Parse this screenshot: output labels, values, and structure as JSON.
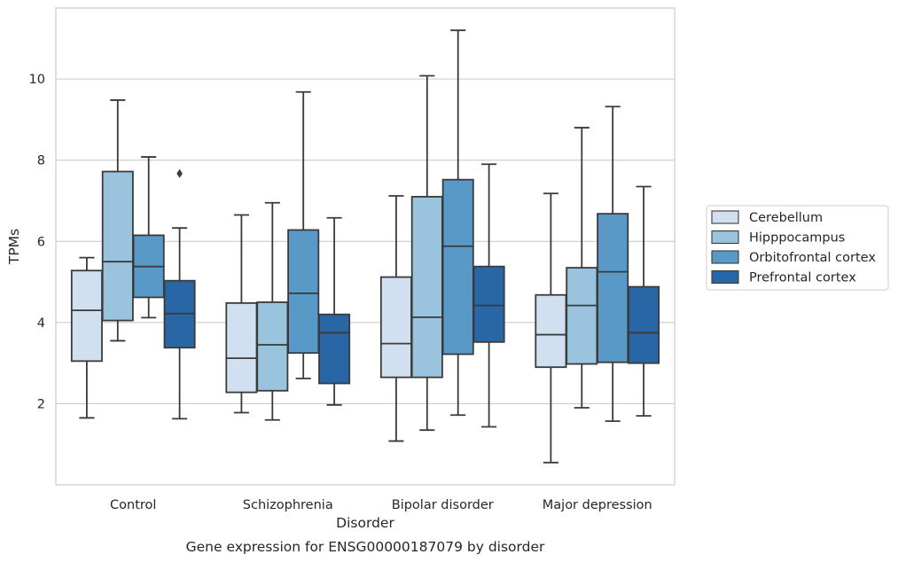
{
  "chart_data": {
    "type": "box",
    "title": "Gene expression for ENSG00000187079 by disorder",
    "xlabel": "Disorder",
    "ylabel": "TPMs",
    "ylim": [
      0.0,
      11.75
    ],
    "yticks": [
      2,
      4,
      6,
      8,
      10
    ],
    "grid": "horizontal",
    "legend_position": "right",
    "categories": [
      "Control",
      "Schizophrenia",
      "Bipolar disorder",
      "Major depression"
    ],
    "series": [
      {
        "name": "Cerebellum",
        "color": "#d0e0f0",
        "boxes": [
          {
            "whislo": 1.65,
            "q1": 3.05,
            "med": 4.3,
            "q3": 5.28,
            "whishi": 5.6,
            "fliers": []
          },
          {
            "whislo": 1.78,
            "q1": 2.28,
            "med": 3.12,
            "q3": 4.48,
            "whishi": 6.65,
            "fliers": []
          },
          {
            "whislo": 1.08,
            "q1": 2.65,
            "med": 3.48,
            "q3": 5.12,
            "whishi": 7.12,
            "fliers": []
          },
          {
            "whislo": 0.55,
            "q1": 2.9,
            "med": 3.7,
            "q3": 4.68,
            "whishi": 7.18,
            "fliers": []
          }
        ]
      },
      {
        "name": "Hipppocampus",
        "color": "#9ac4de",
        "boxes": [
          {
            "whislo": 3.55,
            "q1": 4.05,
            "med": 5.5,
            "q3": 7.72,
            "whishi": 9.48,
            "fliers": []
          },
          {
            "whislo": 1.6,
            "q1": 2.32,
            "med": 3.45,
            "q3": 4.5,
            "whishi": 6.95,
            "fliers": []
          },
          {
            "whislo": 1.35,
            "q1": 2.65,
            "med": 4.13,
            "q3": 7.1,
            "whishi": 10.08,
            "fliers": []
          },
          {
            "whislo": 1.9,
            "q1": 2.98,
            "med": 4.42,
            "q3": 5.35,
            "whishi": 8.8,
            "fliers": []
          }
        ]
      },
      {
        "name": "Orbitofrontal cortex",
        "color": "#5999c7",
        "boxes": [
          {
            "whislo": 4.12,
            "q1": 4.62,
            "med": 5.38,
            "q3": 6.15,
            "whishi": 8.08,
            "fliers": []
          },
          {
            "whislo": 2.62,
            "q1": 3.25,
            "med": 4.72,
            "q3": 6.28,
            "whishi": 9.68,
            "fliers": []
          },
          {
            "whislo": 1.72,
            "q1": 3.22,
            "med": 5.88,
            "q3": 7.52,
            "whishi": 11.2,
            "fliers": []
          },
          {
            "whislo": 1.57,
            "q1": 3.02,
            "med": 5.25,
            "q3": 6.68,
            "whishi": 9.32,
            "fliers": []
          }
        ]
      },
      {
        "name": "Prefrontal cortex",
        "color": "#2866a6",
        "boxes": [
          {
            "whislo": 1.63,
            "q1": 3.38,
            "med": 4.22,
            "q3": 5.03,
            "whishi": 6.33,
            "fliers": [
              7.67
            ]
          },
          {
            "whislo": 1.97,
            "q1": 2.5,
            "med": 3.75,
            "q3": 4.2,
            "whishi": 6.58,
            "fliers": []
          },
          {
            "whislo": 1.43,
            "q1": 3.52,
            "med": 4.42,
            "q3": 5.38,
            "whishi": 7.9,
            "fliers": []
          },
          {
            "whislo": 1.7,
            "q1": 3.0,
            "med": 3.75,
            "q3": 4.88,
            "whishi": 7.35,
            "fliers": []
          }
        ]
      }
    ]
  }
}
